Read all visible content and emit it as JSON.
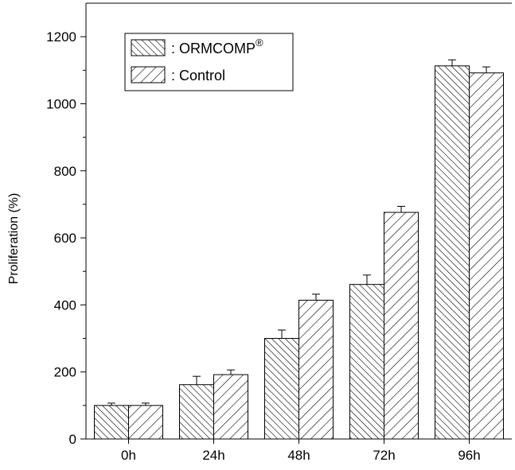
{
  "chart_data": {
    "type": "bar",
    "ylabel": "Proliferation (%)",
    "categories": [
      "0h",
      "24h",
      "48h",
      "72h",
      "96h"
    ],
    "ylim": [
      0,
      1300
    ],
    "yticks": [
      0,
      200,
      400,
      600,
      800,
      1000,
      1200
    ],
    "grid": false,
    "legend_position": "top-left",
    "series": [
      {
        "name": ": ORMCOMP",
        "superscript": "®",
        "pattern": "back-diagonal-hatch",
        "values": [
          100,
          162,
          300,
          461,
          1113
        ],
        "errors": [
          7,
          25,
          25,
          28,
          18
        ]
      },
      {
        "name": ": Control",
        "pattern": "forward-diagonal-hatch",
        "values": [
          100,
          192,
          414,
          676,
          1092
        ],
        "errors": [
          7,
          14,
          18,
          18,
          18
        ]
      }
    ],
    "colors": {
      "axis": "#000000",
      "hatch": "#000000",
      "background": "#ffffff"
    }
  }
}
